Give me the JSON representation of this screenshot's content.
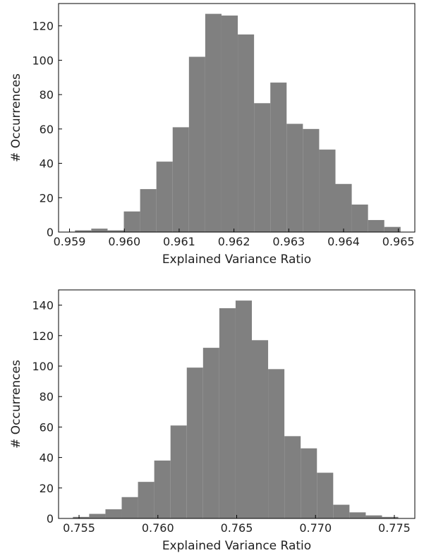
{
  "chart_data": [
    {
      "type": "bar",
      "xlabel": "Explained Variance Ratio",
      "ylabel": "# Occurrences",
      "xlim": [
        0.9588,
        0.9653
      ],
      "ylim": [
        0,
        133
      ],
      "xticks": [
        {
          "value": 0.959,
          "label": "0.959"
        },
        {
          "value": 0.96,
          "label": "0.960"
        },
        {
          "value": 0.961,
          "label": "0.961"
        },
        {
          "value": 0.962,
          "label": "0.962"
        },
        {
          "value": 0.963,
          "label": "0.963"
        },
        {
          "value": 0.964,
          "label": "0.964"
        },
        {
          "value": 0.965,
          "label": "0.965"
        }
      ],
      "yticks": [
        {
          "value": 0,
          "label": "0"
        },
        {
          "value": 20,
          "label": "20"
        },
        {
          "value": 40,
          "label": "40"
        },
        {
          "value": 60,
          "label": "60"
        },
        {
          "value": 80,
          "label": "80"
        },
        {
          "value": 100,
          "label": "100"
        },
        {
          "value": 120,
          "label": "120"
        }
      ],
      "bin_start": 0.9591,
      "bin_width": 0.000297,
      "values": [
        1,
        2,
        1,
        12,
        25,
        41,
        61,
        102,
        127,
        126,
        115,
        75,
        87,
        63,
        60,
        48,
        28,
        16,
        7,
        3
      ],
      "bar_color": "#808080",
      "grid": false
    },
    {
      "type": "bar",
      "xlabel": "Explained Variance Ratio",
      "ylabel": "# Occurrences",
      "xlim": [
        0.7537,
        0.7763
      ],
      "ylim": [
        0,
        150
      ],
      "xticks": [
        {
          "value": 0.755,
          "label": "0.755"
        },
        {
          "value": 0.76,
          "label": "0.760"
        },
        {
          "value": 0.765,
          "label": "0.765"
        },
        {
          "value": 0.77,
          "label": "0.770"
        },
        {
          "value": 0.775,
          "label": "0.775"
        }
      ],
      "yticks": [
        {
          "value": 0,
          "label": "0"
        },
        {
          "value": 20,
          "label": "20"
        },
        {
          "value": 40,
          "label": "40"
        },
        {
          "value": 60,
          "label": "60"
        },
        {
          "value": 80,
          "label": "80"
        },
        {
          "value": 100,
          "label": "100"
        },
        {
          "value": 120,
          "label": "120"
        },
        {
          "value": 140,
          "label": "140"
        }
      ],
      "bin_start": 0.75461,
      "bin_width": 0.001032,
      "values": [
        1,
        3,
        6,
        14,
        24,
        38,
        61,
        99,
        112,
        138,
        143,
        117,
        98,
        54,
        46,
        30,
        9,
        4,
        2,
        1
      ],
      "bar_color": "#808080",
      "grid": false
    }
  ]
}
